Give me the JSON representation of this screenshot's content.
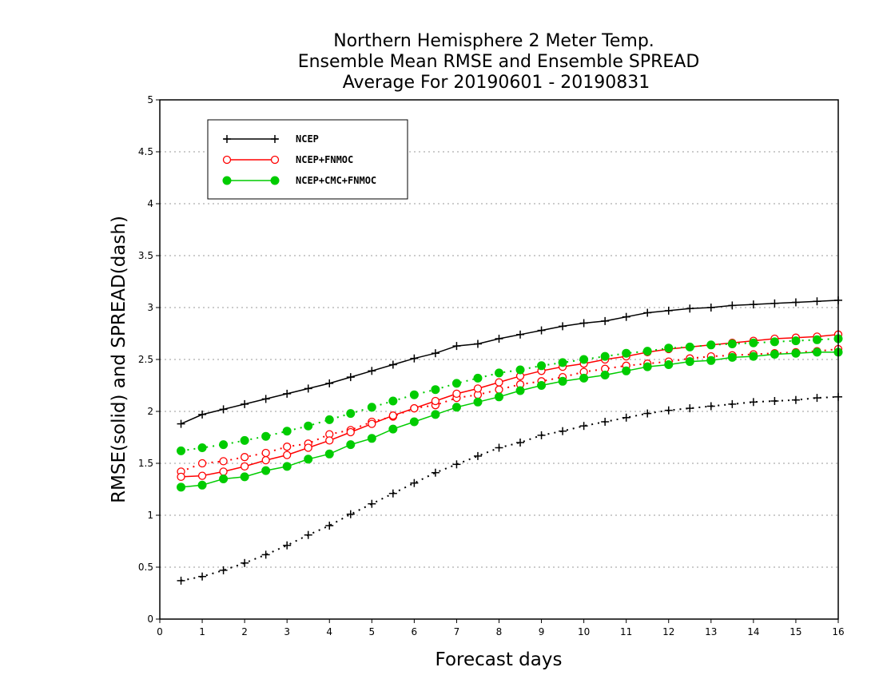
{
  "chart_data": {
    "type": "line",
    "title_lines": [
      "Northern Hemisphere 2 Meter Temp.",
      "Ensemble Mean RMSE and Ensemble SPREAD",
      "Average For 20190601 - 20190831"
    ],
    "xlabel": "Forecast days",
    "ylabel": "RMSE(solid) and SPREAD(dash)",
    "xlim": [
      0,
      16
    ],
    "ylim": [
      0,
      5
    ],
    "xticks": [
      "0",
      "1",
      "2",
      "3",
      "4",
      "5",
      "6",
      "7",
      "8",
      "9",
      "10",
      "11",
      "12",
      "13",
      "14",
      "15",
      "16"
    ],
    "yticks": [
      "0",
      "0.5",
      "1",
      "1.5",
      "2",
      "2.5",
      "3",
      "3.5",
      "4",
      "4.5",
      "5"
    ],
    "grid": "horizontal dotted",
    "legend_position": "top-left",
    "x": [
      0.5,
      1,
      1.5,
      2,
      2.5,
      3,
      3.5,
      4,
      4.5,
      5,
      5.5,
      6,
      6.5,
      7,
      7.5,
      8,
      8.5,
      9,
      9.5,
      10,
      10.5,
      11,
      11.5,
      12,
      12.5,
      13,
      13.5,
      14,
      14.5,
      15,
      15.5,
      16
    ],
    "series": [
      {
        "name": "NCEP",
        "color": "#000000",
        "marker": "plus",
        "rmse": [
          1.88,
          1.97,
          2.02,
          2.07,
          2.12,
          2.17,
          2.22,
          2.27,
          2.33,
          2.39,
          2.45,
          2.51,
          2.56,
          2.63,
          2.65,
          2.7,
          2.74,
          2.78,
          2.82,
          2.85,
          2.87,
          2.91,
          2.95,
          2.97,
          2.99,
          3.0,
          3.02,
          3.03,
          3.04,
          3.05,
          3.06,
          3.07
        ],
        "spread": [
          0.37,
          0.41,
          0.47,
          0.54,
          0.62,
          0.71,
          0.81,
          0.9,
          1.01,
          1.11,
          1.21,
          1.31,
          1.41,
          1.49,
          1.57,
          1.65,
          1.7,
          1.77,
          1.81,
          1.86,
          1.9,
          1.94,
          1.98,
          2.01,
          2.03,
          2.05,
          2.07,
          2.09,
          2.1,
          2.11,
          2.13,
          2.14
        ]
      },
      {
        "name": "NCEP+FNMOC",
        "color": "#ff0000",
        "marker": "open-circle",
        "rmse": [
          1.37,
          1.38,
          1.42,
          1.47,
          1.53,
          1.58,
          1.65,
          1.72,
          1.8,
          1.88,
          1.96,
          2.03,
          2.1,
          2.17,
          2.22,
          2.28,
          2.34,
          2.39,
          2.43,
          2.46,
          2.5,
          2.53,
          2.57,
          2.6,
          2.62,
          2.64,
          2.66,
          2.68,
          2.7,
          2.71,
          2.72,
          2.74
        ],
        "spread": [
          1.42,
          1.5,
          1.52,
          1.56,
          1.6,
          1.66,
          1.69,
          1.78,
          1.82,
          1.9,
          1.95,
          2.03,
          2.06,
          2.13,
          2.16,
          2.21,
          2.26,
          2.29,
          2.33,
          2.38,
          2.41,
          2.44,
          2.46,
          2.48,
          2.51,
          2.53,
          2.54,
          2.55,
          2.56,
          2.57,
          2.58,
          2.6
        ]
      },
      {
        "name": "NCEP+CMC+FNMOC",
        "color": "#00cc00",
        "marker": "filled-circle",
        "rmse": [
          1.27,
          1.29,
          1.35,
          1.37,
          1.43,
          1.47,
          1.54,
          1.59,
          1.68,
          1.74,
          1.83,
          1.9,
          1.97,
          2.04,
          2.09,
          2.14,
          2.2,
          2.25,
          2.29,
          2.32,
          2.35,
          2.39,
          2.43,
          2.45,
          2.48,
          2.49,
          2.52,
          2.53,
          2.55,
          2.56,
          2.57,
          2.57
        ],
        "spread": [
          1.62,
          1.65,
          1.68,
          1.72,
          1.76,
          1.81,
          1.86,
          1.92,
          1.98,
          2.04,
          2.1,
          2.16,
          2.21,
          2.27,
          2.32,
          2.37,
          2.4,
          2.44,
          2.47,
          2.5,
          2.53,
          2.56,
          2.58,
          2.61,
          2.62,
          2.64,
          2.65,
          2.66,
          2.67,
          2.68,
          2.69,
          2.7
        ]
      }
    ]
  }
}
